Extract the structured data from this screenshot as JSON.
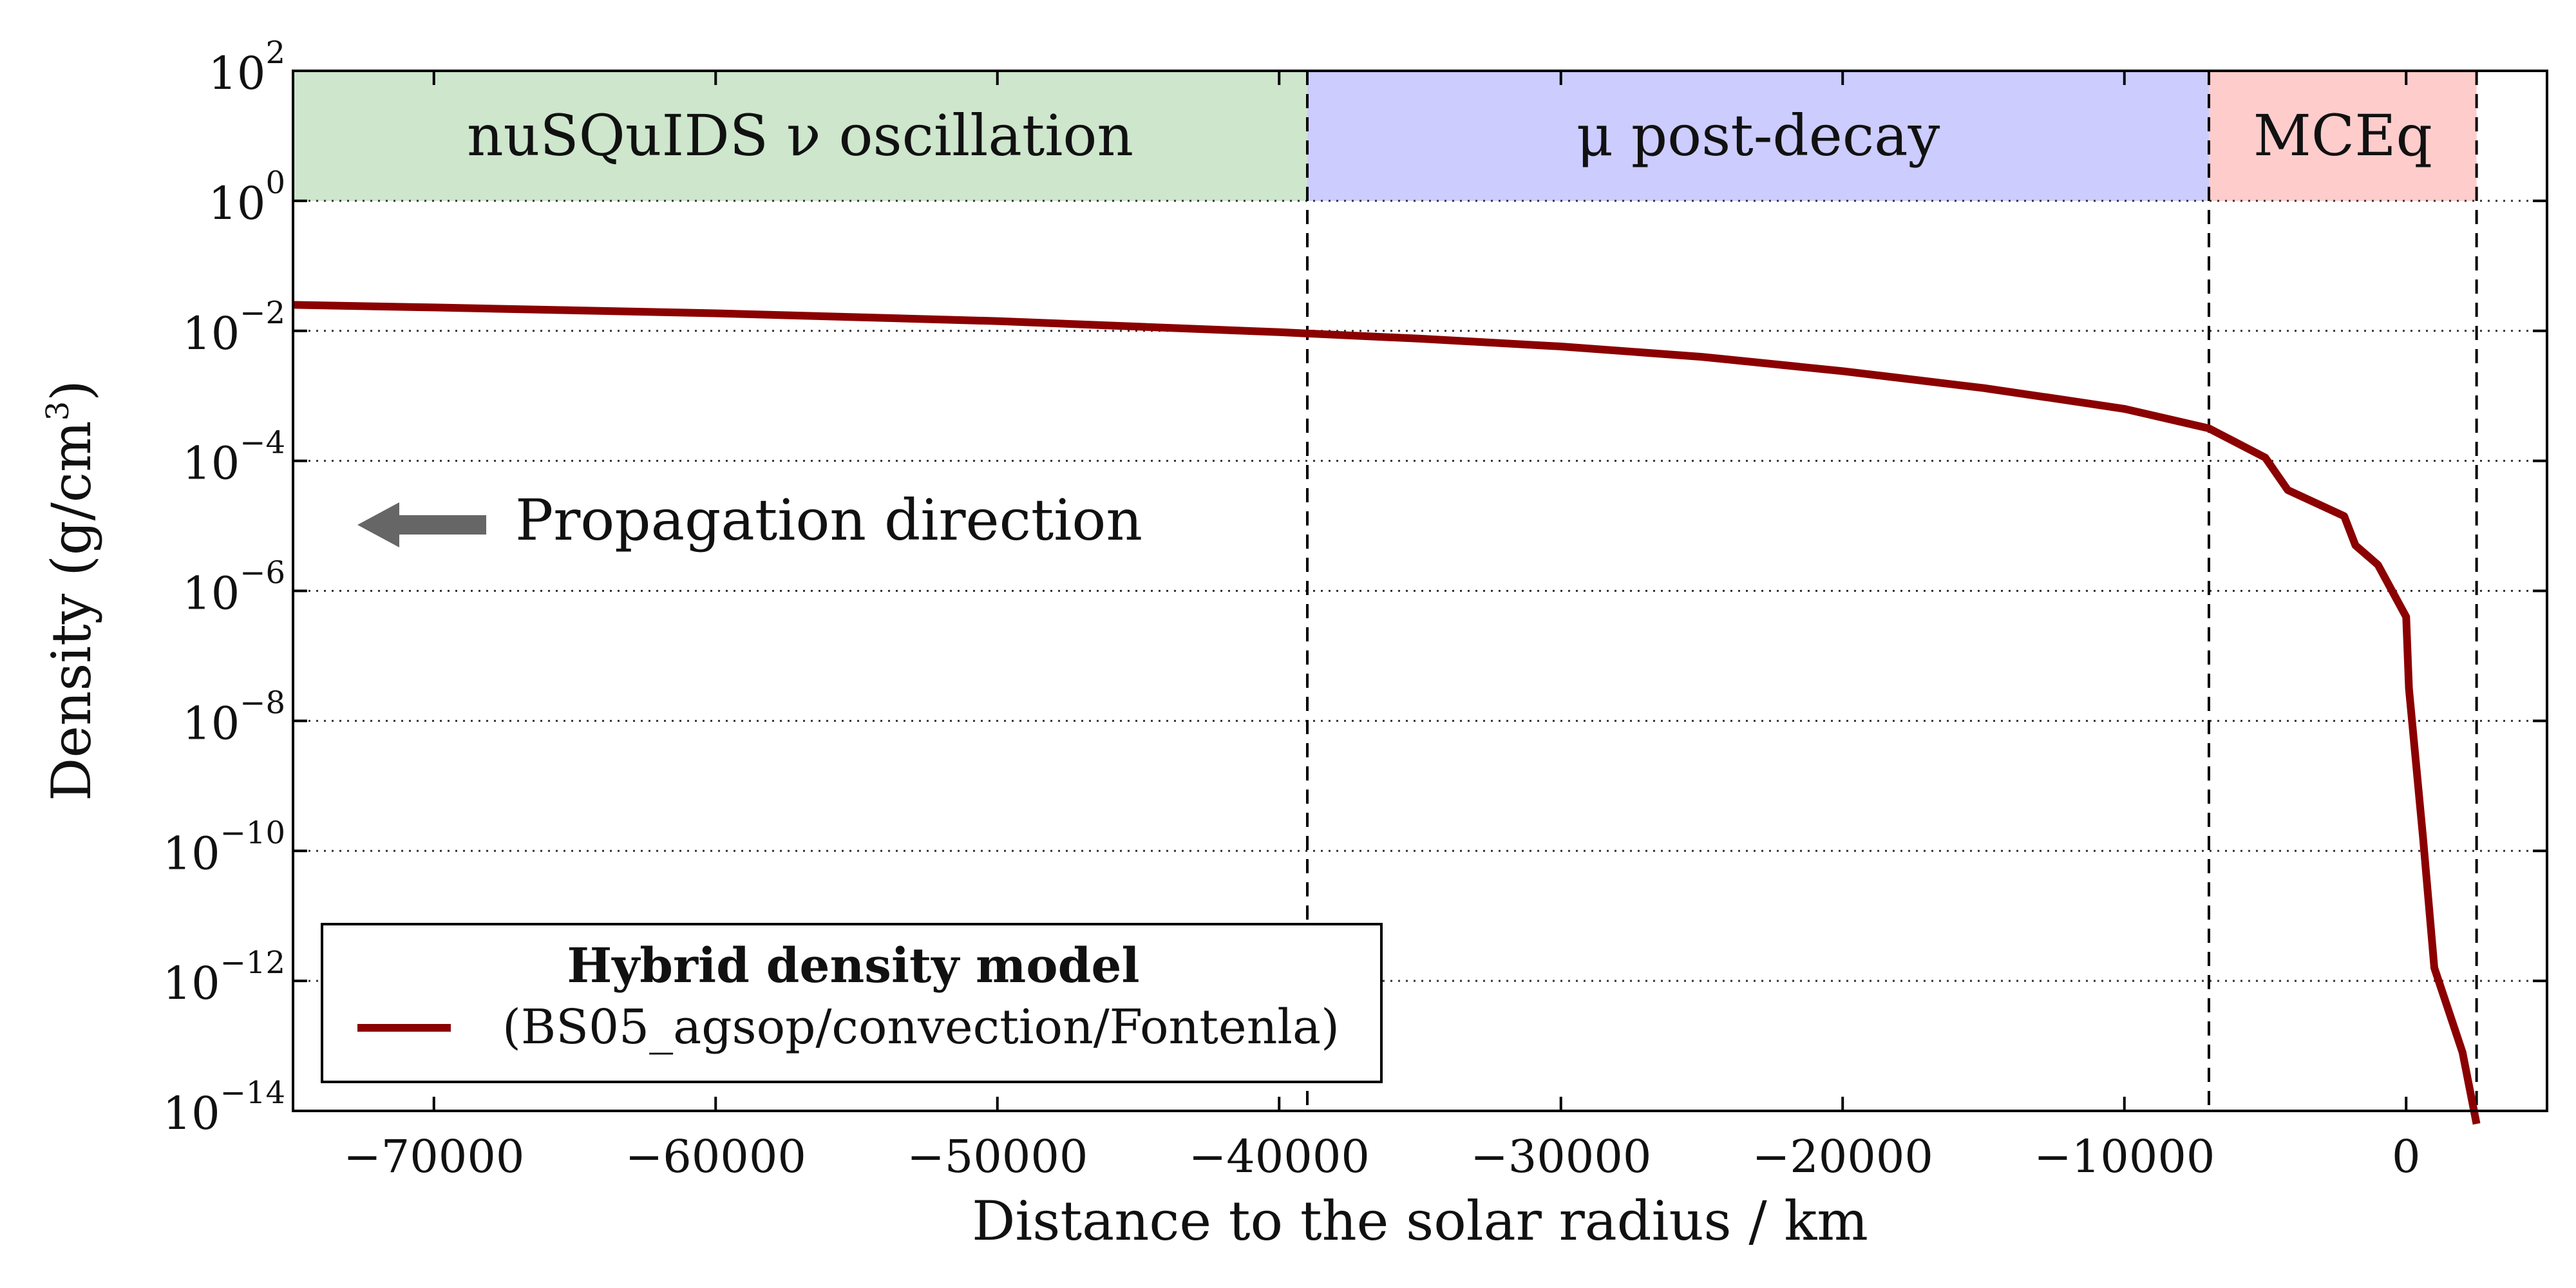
{
  "chart_data": {
    "type": "line",
    "xlabel": "Distance to the solar radius / km",
    "ylabel": "Density (g/cm",
    "ylabel_exp": "3",
    "ylabel_close": ")",
    "yscale": "log",
    "xlim": [
      -75000,
      5000
    ],
    "ylim_exp": [
      -14,
      2
    ],
    "x_ticks": [
      {
        "value": -70000,
        "label": "−70000"
      },
      {
        "value": -60000,
        "label": "−60000"
      },
      {
        "value": -50000,
        "label": "−50000"
      },
      {
        "value": -40000,
        "label": "−40000"
      },
      {
        "value": -30000,
        "label": "−30000"
      },
      {
        "value": -20000,
        "label": "−20000"
      },
      {
        "value": -10000,
        "label": "−10000"
      },
      {
        "value": 0,
        "label": "0"
      }
    ],
    "y_ticks": [
      {
        "exp": 2,
        "base": "10",
        "sup": "2"
      },
      {
        "exp": 0,
        "base": "10",
        "sup": "0"
      },
      {
        "exp": -2,
        "base": "10",
        "sup": "−2"
      },
      {
        "exp": -4,
        "base": "10",
        "sup": "−4"
      },
      {
        "exp": -6,
        "base": "10",
        "sup": "−6"
      },
      {
        "exp": -8,
        "base": "10",
        "sup": "−8"
      },
      {
        "exp": -10,
        "base": "10",
        "sup": "−10"
      },
      {
        "exp": -12,
        "base": "10",
        "sup": "−12"
      },
      {
        "exp": -14,
        "base": "10",
        "sup": "−14"
      }
    ],
    "grid_y": [
      0,
      -2,
      -4,
      -6,
      -8,
      -10,
      -12
    ],
    "regions": [
      {
        "name": "nusquids",
        "label": "nuSQuIDS ν oscillation",
        "x0": -75000,
        "x1": -39000,
        "color": "#cde6cc"
      },
      {
        "name": "mu-post-decay",
        "label": "μ post-decay",
        "x0": -39000,
        "x1": -7000,
        "color": "#ccccff"
      },
      {
        "name": "mceq",
        "label": "MCEq",
        "x0": -7000,
        "x1": 2500,
        "color": "#ffcccc"
      }
    ],
    "boundaries": [
      -39000,
      -7000,
      2500
    ],
    "series": [
      {
        "name": "Hybrid density model",
        "color": "#8b0000",
        "x": [
          -75000,
          -70000,
          -60000,
          -50000,
          -40000,
          -35000,
          -30000,
          -25000,
          -20000,
          -15000,
          -12000,
          -10000,
          -7000,
          -5000,
          -4200,
          -2200,
          -1800,
          -1000,
          -500,
          0,
          100,
          600,
          1000,
          2000,
          2500
        ],
        "log10_y": [
          -1.6,
          -1.64,
          -1.73,
          -1.85,
          -2.02,
          -2.12,
          -2.24,
          -2.4,
          -2.62,
          -2.88,
          -3.07,
          -3.2,
          -3.5,
          -3.95,
          -4.45,
          -4.85,
          -5.3,
          -5.6,
          -6.0,
          -6.4,
          -7.5,
          -9.8,
          -11.8,
          -13.1,
          -14.2
        ]
      }
    ],
    "legend": {
      "title": "Hybrid density model",
      "entry": "(BS05_agsop/convection/Fontenla)",
      "position": "lower-left"
    },
    "annotation": {
      "text": "Propagation direction",
      "arrow": "left"
    },
    "colors": {
      "line": "#8b0000",
      "arrow": "#666666",
      "axis": "#000000"
    }
  }
}
